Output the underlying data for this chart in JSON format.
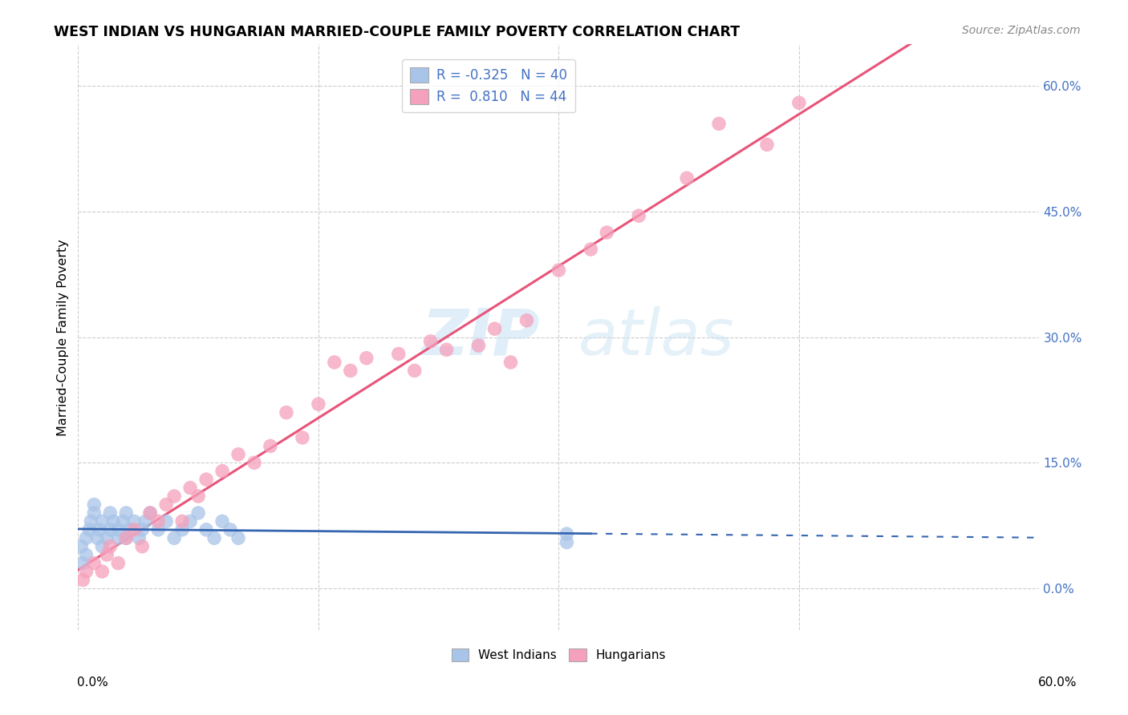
{
  "title": "WEST INDIAN VS HUNGARIAN MARRIED-COUPLE FAMILY POVERTY CORRELATION CHART",
  "source": "Source: ZipAtlas.com",
  "ylabel": "Married-Couple Family Poverty",
  "watermark_zip": "ZIP",
  "watermark_atlas": "atlas",
  "west_indian_color": "#a8c4e8",
  "hungarian_color": "#f5a0bc",
  "west_indian_line_color": "#3565b0",
  "hungarian_line_color": "#e8547a",
  "legend_r_west": "R = -0.325",
  "legend_n_west": "N = 40",
  "legend_r_hung": "R =  0.810",
  "legend_n_hung": "N = 44",
  "west_indians_x": [
    0.2,
    0.3,
    0.5,
    0.5,
    0.7,
    0.8,
    1.0,
    1.0,
    1.2,
    1.3,
    1.5,
    1.5,
    1.8,
    2.0,
    2.0,
    2.2,
    2.5,
    2.5,
    2.8,
    3.0,
    3.0,
    3.2,
    3.5,
    3.8,
    4.0,
    4.2,
    4.5,
    5.0,
    5.5,
    6.0,
    6.5,
    7.0,
    7.5,
    8.0,
    8.5,
    9.0,
    9.5,
    10.0,
    30.5,
    30.5
  ],
  "west_indians_y": [
    5.0,
    3.0,
    6.0,
    4.0,
    7.0,
    8.0,
    9.0,
    10.0,
    6.0,
    7.0,
    8.0,
    5.0,
    6.0,
    9.0,
    7.0,
    8.0,
    7.0,
    6.0,
    8.0,
    9.0,
    6.0,
    7.0,
    8.0,
    6.0,
    7.0,
    8.0,
    9.0,
    7.0,
    8.0,
    6.0,
    7.0,
    8.0,
    9.0,
    7.0,
    6.0,
    8.0,
    7.0,
    6.0,
    6.5,
    5.5
  ],
  "hungarians_x": [
    0.3,
    0.5,
    1.0,
    1.5,
    1.8,
    2.0,
    2.5,
    3.0,
    3.5,
    4.0,
    4.5,
    5.0,
    5.5,
    6.0,
    6.5,
    7.0,
    7.5,
    8.0,
    9.0,
    10.0,
    11.0,
    12.0,
    13.0,
    14.0,
    15.0,
    16.0,
    17.0,
    18.0,
    20.0,
    21.0,
    22.0,
    23.0,
    25.0,
    26.0,
    27.0,
    28.0,
    30.0,
    32.0,
    33.0,
    35.0,
    38.0,
    40.0,
    43.0,
    45.0
  ],
  "hungarians_y": [
    1.0,
    2.0,
    3.0,
    2.0,
    4.0,
    5.0,
    3.0,
    6.0,
    7.0,
    5.0,
    9.0,
    8.0,
    10.0,
    11.0,
    8.0,
    12.0,
    11.0,
    13.0,
    14.0,
    16.0,
    15.0,
    17.0,
    21.0,
    18.0,
    22.0,
    27.0,
    26.0,
    27.5,
    28.0,
    26.0,
    29.5,
    28.5,
    29.0,
    31.0,
    27.0,
    32.0,
    38.0,
    40.5,
    42.5,
    44.5,
    49.0,
    55.5,
    53.0,
    58.0
  ],
  "xlim": [
    0,
    60
  ],
  "ylim": [
    -5,
    65
  ],
  "yticks": [
    0,
    15,
    30,
    45,
    60
  ],
  "xticks_bottom": [
    0,
    15,
    30,
    45,
    60
  ],
  "background_color": "#ffffff",
  "grid_color": "#cccccc",
  "wi_solid_end_x": 32,
  "wi_dashed_start_x": 32,
  "wi_dashed_end_x": 60,
  "hung_line_start_x": 0,
  "hung_line_end_x": 60
}
